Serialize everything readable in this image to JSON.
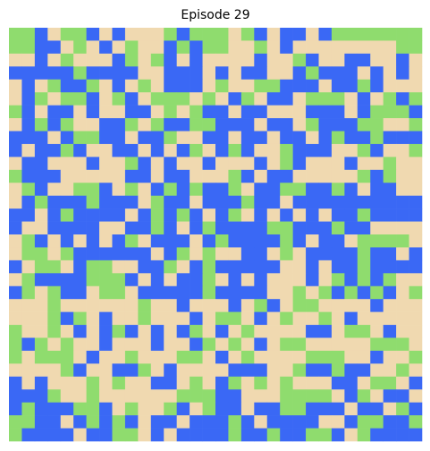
{
  "chart_data": {
    "type": "heatmap",
    "title": "Episode 29",
    "palette": [
      "#f0d9b0",
      "#8fdc6e",
      "#3a68f5"
    ],
    "cells": [
      [
        1,
        1,
        2,
        0,
        1,
        1,
        2,
        0,
        2,
        0,
        0,
        0,
        1,
        2,
        1,
        1,
        1,
        0,
        1,
        2,
        0,
        2,
        2,
        0,
        2,
        1,
        1,
        1,
        1,
        1,
        1,
        1
      ],
      [
        1,
        1,
        2,
        2,
        0,
        1,
        0,
        2,
        0,
        1,
        0,
        0,
        2,
        1,
        2,
        1,
        1,
        0,
        0,
        1,
        0,
        2,
        0,
        0,
        0,
        0,
        0,
        0,
        0,
        0,
        1,
        1
      ],
      [
        0,
        0,
        2,
        0,
        1,
        0,
        0,
        0,
        2,
        1,
        0,
        1,
        2,
        0,
        2,
        0,
        0,
        0,
        0,
        2,
        0,
        0,
        1,
        2,
        0,
        0,
        2,
        2,
        0,
        0,
        2,
        0
      ],
      [
        2,
        2,
        2,
        2,
        2,
        1,
        2,
        2,
        2,
        2,
        0,
        0,
        2,
        2,
        2,
        0,
        2,
        0,
        2,
        2,
        0,
        0,
        2,
        1,
        2,
        2,
        2,
        0,
        2,
        0,
        2,
        0
      ],
      [
        0,
        2,
        0,
        1,
        2,
        2,
        1,
        0,
        2,
        0,
        1,
        0,
        2,
        2,
        2,
        0,
        1,
        0,
        0,
        1,
        1,
        2,
        2,
        2,
        0,
        2,
        2,
        1,
        2,
        0,
        0,
        0
      ],
      [
        0,
        2,
        1,
        0,
        1,
        1,
        2,
        0,
        1,
        2,
        0,
        1,
        1,
        1,
        0,
        1,
        0,
        2,
        1,
        0,
        2,
        2,
        0,
        1,
        1,
        1,
        0,
        2,
        0,
        1,
        2,
        1
      ],
      [
        1,
        2,
        0,
        2,
        2,
        0,
        2,
        0,
        0,
        2,
        2,
        0,
        1,
        0,
        1,
        2,
        2,
        0,
        2,
        2,
        0,
        0,
        0,
        2,
        2,
        2,
        0,
        2,
        1,
        1,
        1,
        2
      ],
      [
        0,
        2,
        1,
        2,
        1,
        0,
        0,
        2,
        2,
        1,
        0,
        1,
        2,
        2,
        1,
        1,
        2,
        2,
        2,
        0,
        2,
        2,
        0,
        1,
        2,
        2,
        2,
        1,
        1,
        0,
        0,
        1
      ],
      [
        2,
        2,
        2,
        0,
        2,
        1,
        1,
        2,
        2,
        0,
        2,
        2,
        1,
        0,
        0,
        2,
        2,
        0,
        2,
        2,
        0,
        2,
        2,
        0,
        2,
        1,
        2,
        2,
        1,
        2,
        2,
        2
      ],
      [
        2,
        0,
        2,
        2,
        1,
        2,
        0,
        0,
        2,
        2,
        0,
        2,
        0,
        2,
        1,
        0,
        2,
        1,
        2,
        0,
        0,
        1,
        2,
        2,
        2,
        0,
        0,
        1,
        2,
        0,
        0,
        1
      ],
      [
        0,
        2,
        2,
        0,
        0,
        0,
        2,
        0,
        0,
        1,
        2,
        0,
        2,
        0,
        0,
        2,
        0,
        0,
        0,
        2,
        0,
        1,
        2,
        0,
        0,
        0,
        2,
        0,
        0,
        1,
        0,
        0
      ],
      [
        1,
        2,
        2,
        2,
        0,
        0,
        0,
        0,
        0,
        2,
        2,
        0,
        2,
        2,
        0,
        0,
        0,
        1,
        2,
        0,
        2,
        2,
        0,
        0,
        0,
        0,
        0,
        1,
        2,
        1,
        0,
        0
      ],
      [
        0,
        1,
        2,
        0,
        0,
        1,
        1,
        2,
        0,
        1,
        0,
        2,
        1,
        2,
        1,
        2,
        2,
        1,
        0,
        2,
        2,
        1,
        1,
        2,
        2,
        1,
        2,
        0,
        2,
        2,
        0,
        0
      ],
      [
        0,
        2,
        1,
        2,
        2,
        2,
        1,
        2,
        2,
        2,
        0,
        1,
        2,
        2,
        0,
        2,
        2,
        2,
        1,
        2,
        2,
        0,
        2,
        2,
        2,
        2,
        2,
        2,
        2,
        2,
        2,
        2
      ],
      [
        2,
        2,
        0,
        2,
        1,
        2,
        2,
        2,
        2,
        0,
        2,
        1,
        2,
        1,
        2,
        0,
        2,
        1,
        0,
        2,
        0,
        2,
        0,
        2,
        0,
        2,
        2,
        1,
        2,
        2,
        2,
        2
      ],
      [
        2,
        0,
        0,
        2,
        2,
        2,
        2,
        0,
        0,
        2,
        2,
        1,
        2,
        0,
        2,
        1,
        2,
        2,
        2,
        2,
        1,
        1,
        2,
        2,
        2,
        1,
        2,
        2,
        0,
        0,
        0,
        0
      ],
      [
        0,
        1,
        2,
        0,
        2,
        0,
        2,
        0,
        2,
        1,
        0,
        2,
        2,
        2,
        0,
        2,
        1,
        2,
        2,
        2,
        2,
        1,
        2,
        0,
        2,
        2,
        0,
        1,
        1,
        1,
        1,
        0
      ],
      [
        0,
        1,
        1,
        0,
        1,
        2,
        2,
        2,
        2,
        2,
        2,
        0,
        2,
        1,
        0,
        1,
        0,
        0,
        2,
        2,
        0,
        1,
        0,
        2,
        2,
        2,
        2,
        1,
        2,
        2,
        0,
        2
      ],
      [
        2,
        0,
        1,
        1,
        0,
        2,
        1,
        1,
        0,
        0,
        2,
        2,
        1,
        0,
        2,
        1,
        2,
        2,
        2,
        2,
        2,
        0,
        0,
        2,
        0,
        2,
        2,
        1,
        2,
        2,
        2,
        2
      ],
      [
        0,
        1,
        2,
        2,
        2,
        2,
        1,
        1,
        1,
        2,
        0,
        2,
        0,
        2,
        2,
        1,
        0,
        2,
        0,
        2,
        0,
        0,
        0,
        2,
        0,
        1,
        2,
        1,
        2,
        1,
        0,
        0
      ],
      [
        2,
        1,
        0,
        1,
        2,
        2,
        0,
        1,
        1,
        0,
        2,
        2,
        2,
        2,
        2,
        1,
        2,
        2,
        2,
        2,
        0,
        0,
        1,
        0,
        1,
        2,
        1,
        2,
        1,
        2,
        0,
        1
      ],
      [
        0,
        0,
        0,
        1,
        0,
        0,
        0,
        0,
        0,
        0,
        1,
        0,
        0,
        2,
        0,
        0,
        0,
        2,
        0,
        1,
        2,
        0,
        1,
        1,
        0,
        0,
        0,
        0,
        2,
        0,
        0,
        0
      ],
      [
        0,
        0,
        0,
        1,
        2,
        1,
        0,
        2,
        0,
        0,
        1,
        0,
        0,
        0,
        2,
        0,
        1,
        1,
        0,
        2,
        0,
        1,
        0,
        0,
        1,
        0,
        2,
        0,
        0,
        0,
        0,
        0
      ],
      [
        1,
        0,
        0,
        1,
        0,
        2,
        0,
        2,
        1,
        2,
        0,
        2,
        0,
        2,
        1,
        0,
        2,
        0,
        1,
        0,
        0,
        0,
        0,
        2,
        2,
        0,
        1,
        1,
        0,
        2,
        0,
        0
      ],
      [
        1,
        2,
        1,
        0,
        1,
        0,
        0,
        2,
        0,
        0,
        0,
        2,
        0,
        0,
        2,
        1,
        0,
        1,
        0,
        2,
        0,
        1,
        1,
        0,
        0,
        0,
        0,
        0,
        1,
        1,
        1,
        0
      ],
      [
        1,
        0,
        1,
        1,
        1,
        0,
        2,
        0,
        0,
        1,
        0,
        0,
        0,
        1,
        1,
        0,
        2,
        0,
        1,
        0,
        0,
        0,
        0,
        1,
        1,
        1,
        0,
        0,
        2,
        0,
        0,
        1
      ],
      [
        0,
        0,
        0,
        0,
        1,
        2,
        0,
        0,
        2,
        2,
        1,
        0,
        2,
        0,
        0,
        0,
        0,
        2,
        2,
        2,
        0,
        0,
        1,
        2,
        2,
        1,
        2,
        2,
        0,
        0,
        1,
        0
      ],
      [
        2,
        0,
        2,
        0,
        0,
        0,
        1,
        0,
        1,
        0,
        0,
        2,
        2,
        0,
        1,
        0,
        2,
        1,
        0,
        1,
        0,
        1,
        0,
        0,
        0,
        2,
        2,
        0,
        1,
        1,
        0,
        2
      ],
      [
        2,
        2,
        2,
        1,
        0,
        0,
        1,
        0,
        0,
        0,
        0,
        0,
        0,
        1,
        1,
        1,
        2,
        2,
        0,
        0,
        0,
        1,
        1,
        1,
        1,
        0,
        2,
        1,
        0,
        2,
        2,
        0
      ],
      [
        2,
        1,
        2,
        2,
        2,
        1,
        1,
        2,
        0,
        1,
        0,
        0,
        1,
        2,
        0,
        1,
        2,
        2,
        0,
        2,
        2,
        1,
        1,
        2,
        2,
        2,
        0,
        2,
        2,
        0,
        1,
        2
      ],
      [
        1,
        1,
        2,
        2,
        0,
        2,
        1,
        2,
        1,
        2,
        0,
        2,
        2,
        0,
        2,
        2,
        2,
        1,
        2,
        0,
        2,
        2,
        2,
        2,
        0,
        0,
        2,
        1,
        1,
        2,
        2,
        1
      ],
      [
        1,
        2,
        2,
        2,
        2,
        0,
        2,
        2,
        1,
        1,
        0,
        2,
        0,
        2,
        2,
        2,
        2,
        1,
        2,
        2,
        1,
        2,
        2,
        1,
        1,
        2,
        0,
        1,
        2,
        2,
        2,
        2
      ]
    ]
  }
}
